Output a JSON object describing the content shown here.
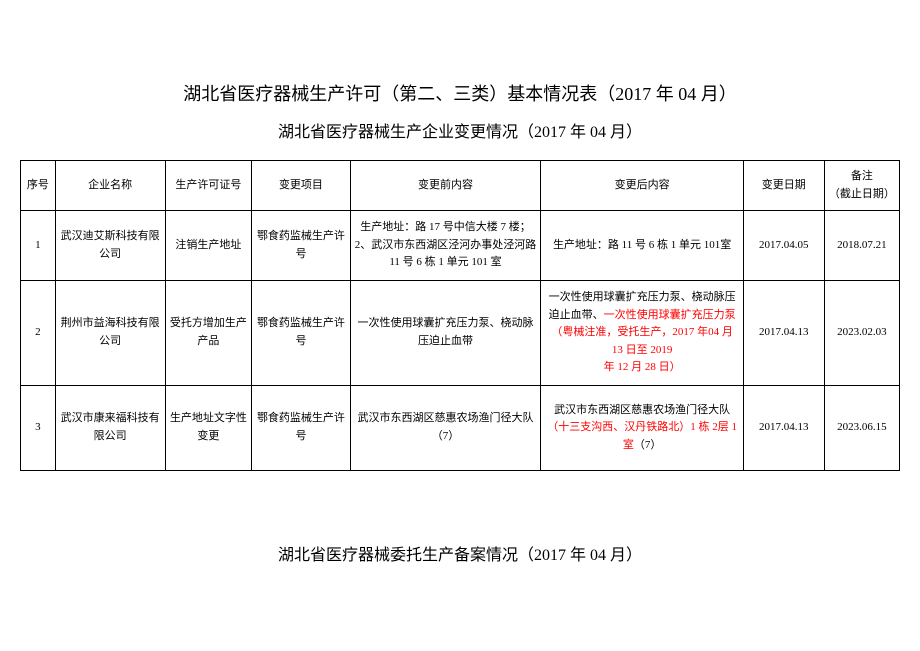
{
  "titles": {
    "main": "湖北省医疗器械生产许可（第二、三类）基本情况表（2017 年 04 月）",
    "sub": "湖北省医疗器械生产企业变更情况（2017 年 04 月）",
    "bottom": "湖北省医疗器械委托生产备案情况（2017 年 04 月）"
  },
  "headers": {
    "seq": "序号",
    "company": "企业名称",
    "license": "生产许可证号",
    "project": "变更项目",
    "before": "变更前内容",
    "after": "变更后内容",
    "date": "变更日期",
    "remark_line1": "备注",
    "remark_line2": "（截止日期）"
  },
  "rows": [
    {
      "seq": "1",
      "company": "武汉迪艾斯科技有限公司",
      "license": "注销生产地址",
      "project": "鄂食药监械生产许号",
      "before": "生产地址：路 17 号中信大楼 7 楼；2、武汉市东西湖区泾河办事处泾河路 11 号 6 栋 1 单元 101 室",
      "after": "生产地址：路 11 号 6 栋 1 单元 101室",
      "date": "2017.04.05",
      "remark": "2018.07.21"
    },
    {
      "seq": "2",
      "company": "荆州市益海科技有限公司",
      "license": "受托方增加生产产品",
      "project": "鄂食药监械生产许号",
      "before": "一次性使用球囊扩充压力泵、桡动脉压迫止血带",
      "after_black": "一次性使用球囊扩充压力泵、桡动脉压迫止血带、",
      "after_red1": "一次性使用球囊扩充压力泵（粤械注准，受托生产，2017 年04 月 13 日至 2019",
      "after_red2": "年 12 月 28 日）",
      "date": "2017.04.13",
      "remark": "2023.02.03"
    },
    {
      "seq": "3",
      "company": "武汉市康来福科技有限公司",
      "license": "生产地址文字性变更",
      "project": "鄂食药监械生产许号",
      "before": "武汉市东西湖区慈惠农场渔门径大队（7）",
      "after_black1": "武汉市东西湖区慈惠农场渔门径大队",
      "after_red": "（十三支沟西、汉丹铁路北）1 栋 2层 1 室",
      "after_black2": "（7）",
      "date": "2017.04.13",
      "remark": "2023.06.15"
    }
  ]
}
